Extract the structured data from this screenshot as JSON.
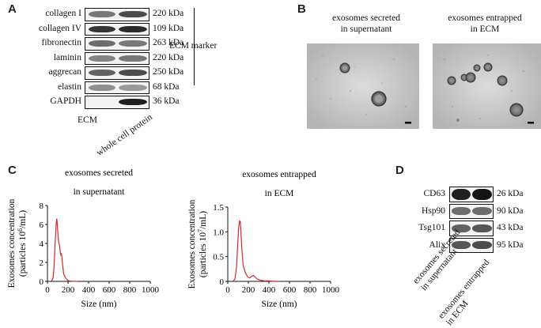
{
  "panels": {
    "a": "A",
    "b": "B",
    "c": "C",
    "d": "D"
  },
  "panelA": {
    "rows": [
      {
        "protein": "collagen I",
        "kda": "220 kDa"
      },
      {
        "protein": "collagen IV",
        "kda": "109 kDa"
      },
      {
        "protein": "fibronectin",
        "kda": "263 kDa"
      },
      {
        "protein": "laminin",
        "kda": "220 kDa"
      },
      {
        "protein": "aggrecan",
        "kda": "250 kDa"
      },
      {
        "protein": "elastin",
        "kda": "68 kDa"
      },
      {
        "protein": "GAPDH",
        "kda": "36 kDa"
      }
    ],
    "bracket_label": "ECM marker",
    "lanes": [
      "ECM",
      "whole cell protein"
    ]
  },
  "panelB": {
    "left_caption_1": "exosomes secreted",
    "left_caption_2": "in supernatant",
    "right_caption_1": "exosomes entrapped",
    "right_caption_2": "in ECM"
  },
  "panelC": {
    "ylabel_1": "Exosomes concentration",
    "ylabel_2": "(particles 10",
    "ylabel_2_sup": "6",
    "ylabel_2_end": "/mL)",
    "ylabel2_1": "Exosomes concentration",
    "ylabel2_2": "(particles 10",
    "ylabel2_2_sup": "7",
    "ylabel2_2_end": "/mL)"
  },
  "panelD": {
    "rows": [
      {
        "protein": "CD63",
        "kda": "26 kDa"
      },
      {
        "protein": "Hsp90",
        "kda": "90 kDa"
      },
      {
        "protein": "Tsg101",
        "kda": "43 kDa"
      },
      {
        "protein": "Alix",
        "kda": "95 kDa"
      }
    ],
    "lanes": [
      "exosomes secreted\nin supernatant",
      "exosomes entrapped\nin ECM"
    ],
    "lane1_line1": "exosomes secreted",
    "lane1_line2": "in supernatant",
    "lane2_line1": "exosomes entrapped",
    "lane2_line2": "in ECM"
  },
  "chart_data": [
    {
      "type": "line",
      "title": "exosomes secreted in supernatant",
      "title_line1": "exosomes secreted",
      "title_line2": "in supernatant",
      "xlabel": "Size (nm)",
      "ylabel": "Exosomes concentration (particles 10^6/mL)",
      "xlim": [
        0,
        1000
      ],
      "ylim": [
        0,
        8
      ],
      "xticks": [
        0,
        200,
        400,
        600,
        800,
        1000
      ],
      "yticks": [
        0,
        2,
        4,
        6,
        8
      ],
      "color": "#d62728",
      "series": [
        {
          "x": [
            40,
            55,
            65,
            75,
            85,
            90,
            95,
            100,
            105,
            110,
            115,
            120,
            125,
            130,
            135,
            140,
            145,
            150,
            155,
            160,
            170,
            180,
            190,
            200,
            215,
            230,
            260,
            300
          ],
          "values": [
            0,
            0.4,
            1.8,
            4.2,
            6.0,
            6.6,
            6.2,
            5.3,
            4.6,
            4.0,
            3.9,
            3.6,
            3.0,
            2.8,
            2.9,
            2.6,
            2.0,
            1.5,
            1.0,
            0.7,
            0.5,
            0.3,
            0.2,
            0.1,
            0.05,
            0.02,
            0.01,
            0
          ]
        }
      ]
    },
    {
      "type": "line",
      "title": "exosomes entrapped in ECM",
      "title_line1": "exosomes entrapped",
      "title_line2": "in ECM",
      "xlabel": "Size (nm)",
      "ylabel": "Exosomes concentration (particles 10^7/mL)",
      "xlim": [
        0,
        1000
      ],
      "ylim": [
        0,
        1.5
      ],
      "xticks": [
        0,
        200,
        400,
        600,
        800,
        1000
      ],
      "yticks": [
        0,
        0.5,
        1.0,
        1.5
      ],
      "ytick_labels": [
        "0",
        "0.5",
        "1.0",
        "1.5"
      ],
      "color": "#d62728",
      "series": [
        {
          "x": [
            50,
            70,
            85,
            95,
            105,
            115,
            122,
            128,
            135,
            142,
            150,
            160,
            170,
            180,
            190,
            200,
            215,
            230,
            250,
            270,
            290,
            320,
            360,
            400,
            450,
            500
          ],
          "values": [
            0,
            0.05,
            0.3,
            0.7,
            1.05,
            1.22,
            1.2,
            1.0,
            0.7,
            0.5,
            0.32,
            0.25,
            0.18,
            0.14,
            0.1,
            0.08,
            0.07,
            0.1,
            0.12,
            0.08,
            0.04,
            0.02,
            0.01,
            0.01,
            0,
            0
          ]
        }
      ]
    }
  ]
}
